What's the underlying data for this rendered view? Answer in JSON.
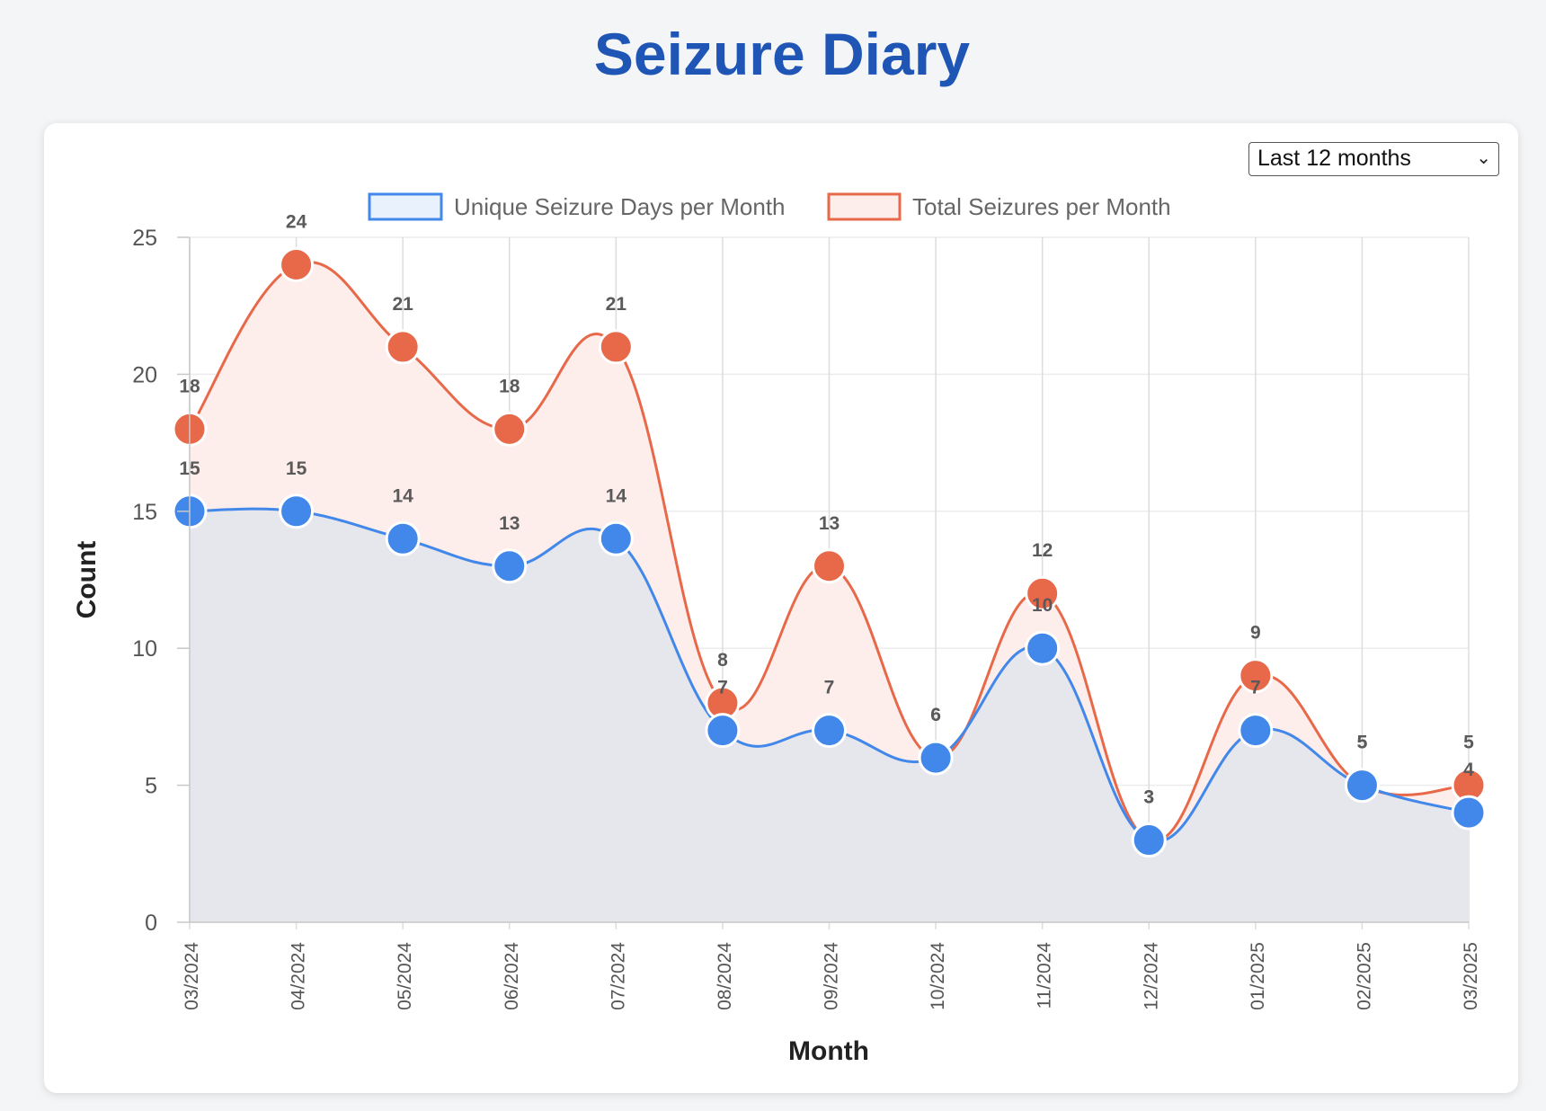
{
  "page": {
    "title": "Seizure Diary"
  },
  "controls": {
    "range_selected": "Last 12 months",
    "range_icon": "chevron-down-icon"
  },
  "colors": {
    "title": "#1f56b5",
    "unique_line": "#4188ea",
    "unique_fill": "#e6e6ed",
    "total_line": "#e8694a",
    "total_fill": "#fdeeeb"
  },
  "chart_data": {
    "type": "line",
    "xlabel": "Month",
    "ylabel": "Count",
    "ylim": [
      0,
      25
    ],
    "yticks": [
      0,
      5,
      10,
      15,
      20,
      25
    ],
    "grid": true,
    "legend_position": "top",
    "categories": [
      "03/2024",
      "04/2024",
      "05/2024",
      "06/2024",
      "07/2024",
      "08/2024",
      "09/2024",
      "10/2024",
      "11/2024",
      "12/2024",
      "01/2025",
      "02/2025",
      "03/2025"
    ],
    "series": [
      {
        "name": "Unique Seizure Days per Month",
        "values": [
          15,
          15,
          14,
          13,
          14,
          7,
          7,
          6,
          10,
          3,
          7,
          5,
          4
        ]
      },
      {
        "name": "Total Seizures per Month",
        "values": [
          18,
          24,
          21,
          18,
          21,
          8,
          13,
          6,
          12,
          3,
          9,
          5,
          5
        ]
      }
    ]
  }
}
